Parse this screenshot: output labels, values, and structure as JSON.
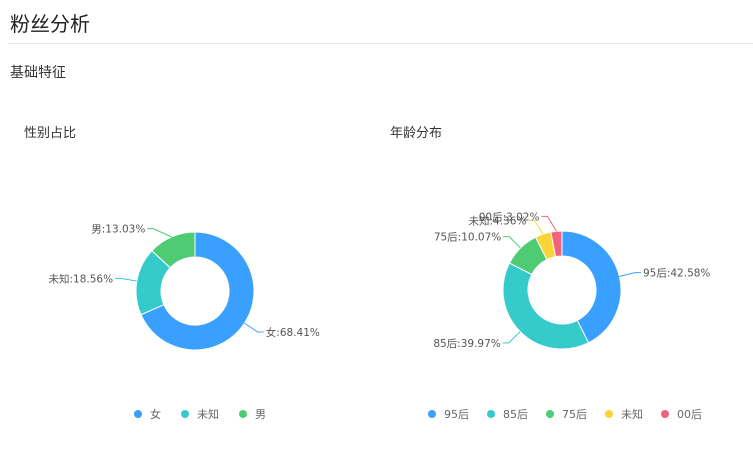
{
  "page": {
    "title": "粉丝分析",
    "section": "基础特征"
  },
  "chart_data": [
    {
      "type": "pie",
      "variant": "donut",
      "title": "性别占比",
      "legend_position": "bottom",
      "slices": [
        {
          "name": "女",
          "value": 68.41,
          "label": "女:68.41%",
          "color": "#3aa0ff"
        },
        {
          "name": "未知",
          "value": 18.56,
          "label": "未知:18.56%",
          "color": "#36cbcb"
        },
        {
          "name": "男",
          "value": 13.03,
          "label": "男:13.03%",
          "color": "#4ecb73"
        }
      ]
    },
    {
      "type": "pie",
      "variant": "donut",
      "title": "年龄分布",
      "legend_position": "bottom",
      "slices": [
        {
          "name": "95后",
          "value": 42.58,
          "label": "95后:42.58%",
          "color": "#3aa0ff"
        },
        {
          "name": "85后",
          "value": 39.97,
          "label": "85后:39.97%",
          "color": "#36cbcb"
        },
        {
          "name": "75后",
          "value": 10.07,
          "label": "75后:10.07%",
          "color": "#4ecb73"
        },
        {
          "name": "未知",
          "value": 4.36,
          "label": "未知:4.36%",
          "color": "#fbd437"
        },
        {
          "name": "00后",
          "value": 3.02,
          "label": "00后:3.02%",
          "color": "#f2637b"
        }
      ]
    }
  ]
}
